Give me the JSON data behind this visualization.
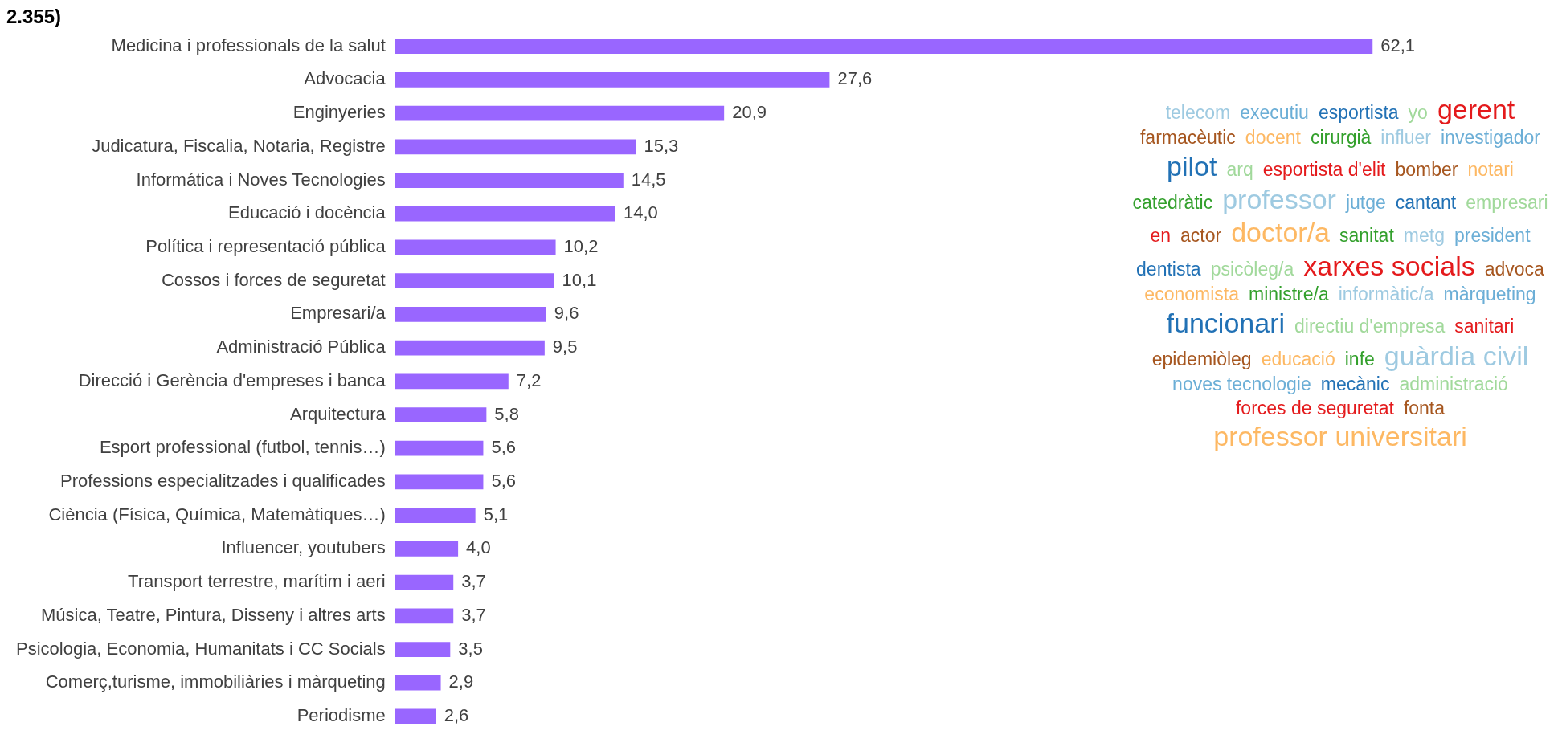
{
  "chart_data": [
    {
      "type": "bar",
      "orientation": "horizontal",
      "title": "2.355)",
      "color": "#9966ff",
      "legend": false,
      "categories": [
        "Medicina i professionals de la salut",
        "Advocacia",
        "Enginyeries",
        "Judicatura, Fiscalia, Notaria, Registre",
        "Informática i Noves Tecnologies",
        "Educació i docència",
        "Política i representació pública",
        "Cossos i forces de seguretat",
        "Empresari/a",
        "Administració Pública",
        "Direcció i Gerència d'empreses i banca",
        "Arquitectura",
        "Esport professional (futbol, tennis…)",
        "Professions especialitzades i qualificades",
        "Ciència (Física, Química, Matemàtiques…)",
        "Influencer, youtubers",
        "Transport terrestre, marítim i aeri",
        "Música, Teatre, Pintura, Disseny i altres arts",
        "Psicologia, Economia, Humanitats i CC Socials",
        "Comerç,turisme, immobiliàries i màrqueting",
        "Periodisme"
      ],
      "values": [
        62.1,
        27.6,
        20.9,
        15.3,
        14.5,
        14.0,
        10.2,
        10.1,
        9.6,
        9.5,
        7.2,
        5.8,
        5.6,
        5.6,
        5.1,
        4.0,
        3.7,
        3.7,
        3.5,
        2.9,
        2.6
      ],
      "value_labels": [
        "62,1",
        "27,6",
        "20,9",
        "15,3",
        "14,5",
        "14,0",
        "10,2",
        "10,1",
        "9,6",
        "9,5",
        "7,2",
        "5,8",
        "5,6",
        "5,6",
        "5,1",
        "4,0",
        "3,7",
        "3,7",
        "3,5",
        "2,9",
        "2,6"
      ]
    },
    {
      "type": "other",
      "annotations": [
        "telecom",
        "executiu",
        "esportista",
        "yo",
        "gerent",
        "farmacèutic",
        "docent",
        "cirurgià",
        "influer",
        "investigador",
        "pilot",
        "arq",
        "esportista d'elit",
        "bomber",
        "notari",
        "catedràtic",
        "professor",
        "jutge",
        "cantant",
        "empresari",
        "en",
        "actor",
        "doctor/a",
        "sanitat",
        "metg",
        "president",
        "dentista",
        "psicòleg/a",
        "xarxes socials",
        "advoca",
        "economista",
        "ministre/a",
        "informàtic/a",
        "màrqueting",
        "funcionari",
        "directiu d'empresa",
        "sanitari",
        "epidemiòleg",
        "educació",
        "infe",
        "guàrdia civil",
        "noves tecnologie",
        "mecànic",
        "administració",
        "forces de seguretat",
        "fonta",
        "professor universitari"
      ]
    }
  ]
}
